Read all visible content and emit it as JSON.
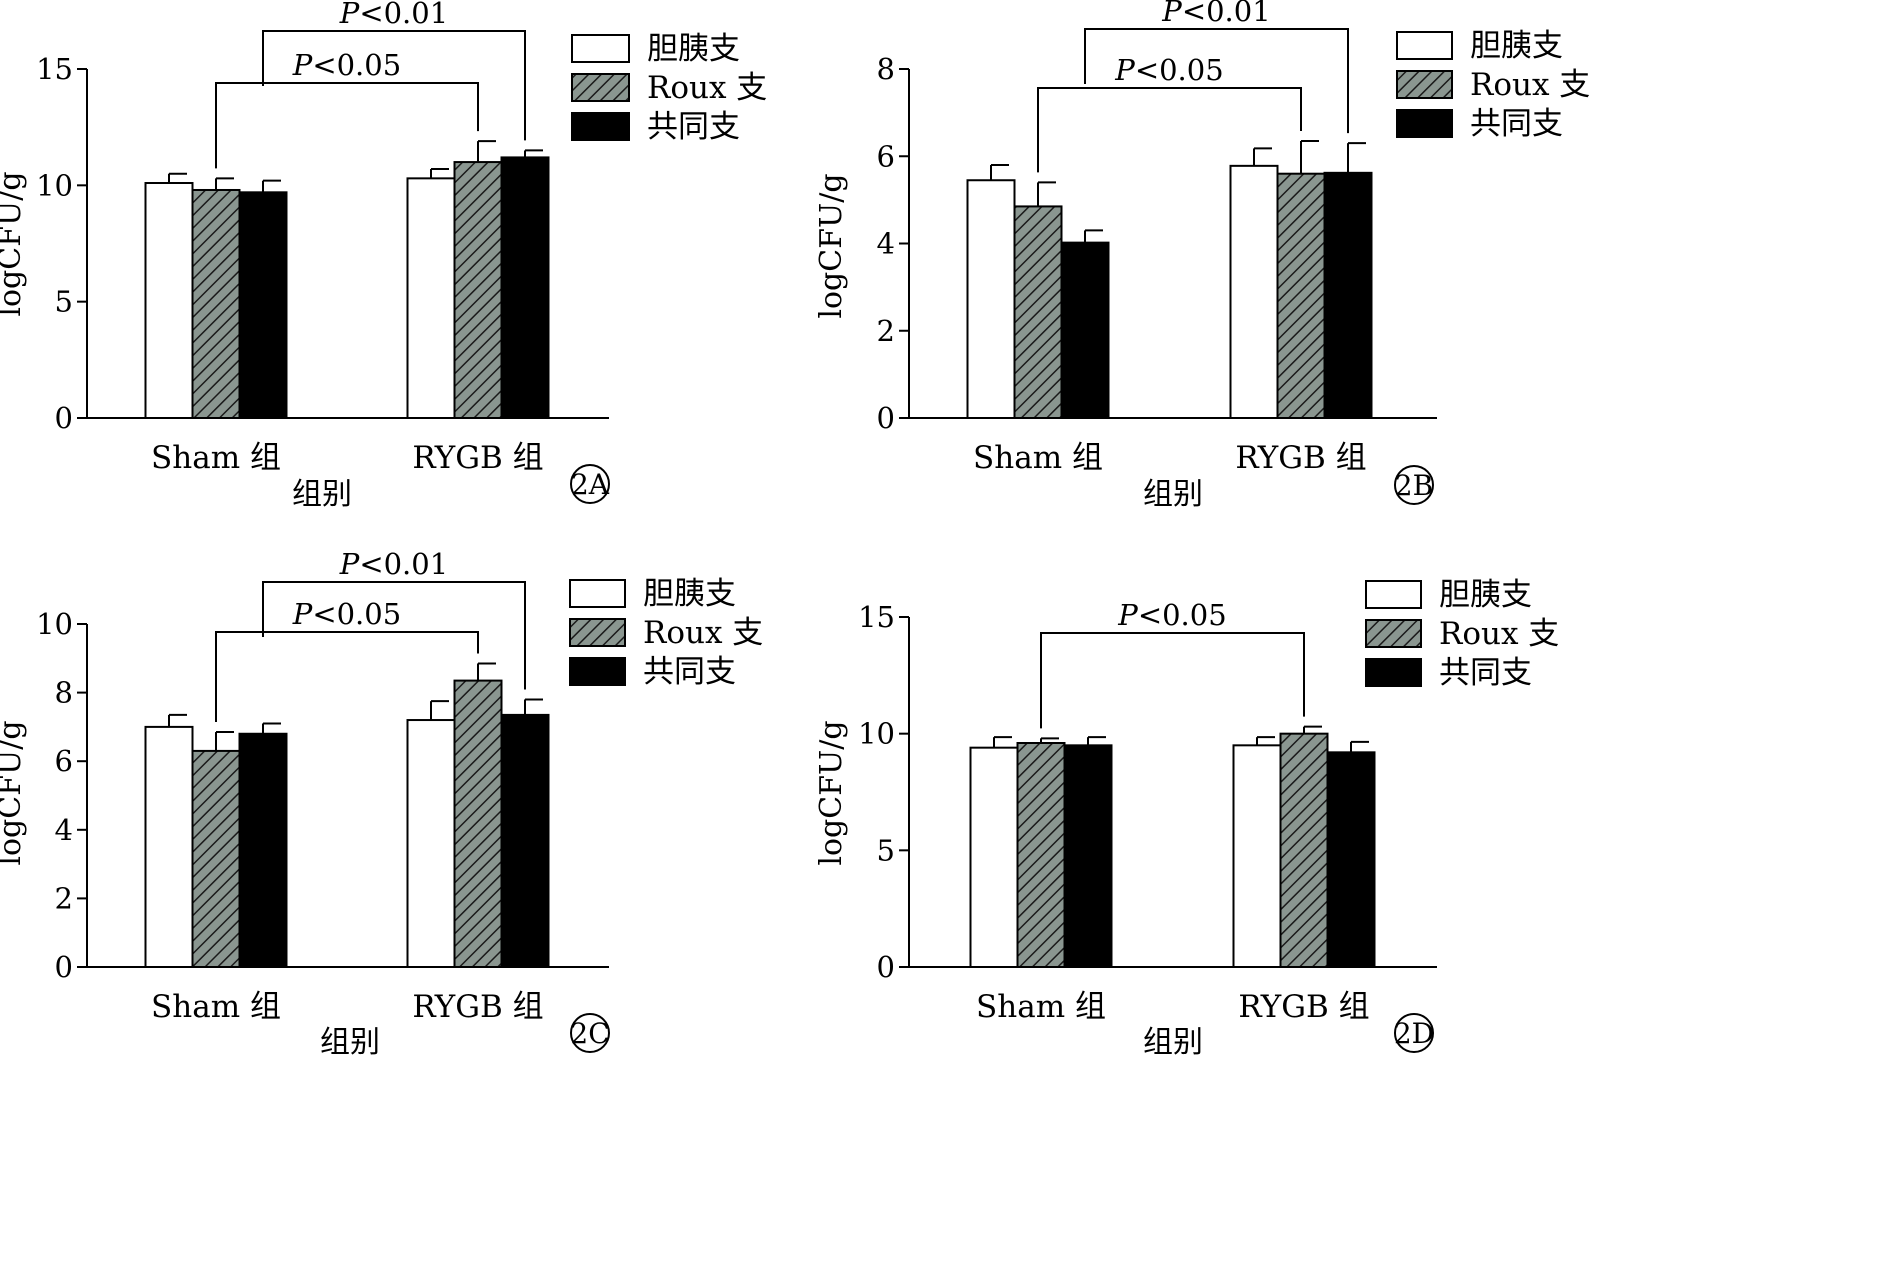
{
  "figure": {
    "legend": [
      "胆胰支",
      "Roux 支",
      "共同支"
    ],
    "series_fills": [
      "#ffffff",
      "hatch",
      "#000000"
    ],
    "colors": {
      "hatch_base": "#8a9690",
      "hatch_line": "#1a1a1a",
      "bar_edge": "#000000"
    }
  },
  "chart_data": [
    {
      "type": "bar",
      "panel_label": "2A",
      "categories": [
        "Sham 组",
        "RYGB 组"
      ],
      "xlabel": "组别",
      "ylabel": "logCFU/g",
      "ylim": [
        0,
        15
      ],
      "yticks": [
        0,
        5,
        10,
        15
      ],
      "legend_position": "top-right",
      "grid": false,
      "series": [
        {
          "name": "胆胰支",
          "values": [
            10.1,
            10.3
          ],
          "errors": [
            0.4,
            0.4
          ]
        },
        {
          "name": "Roux 支",
          "values": [
            9.8,
            11.0
          ],
          "errors": [
            0.5,
            0.9
          ]
        },
        {
          "name": "共同支",
          "values": [
            9.7,
            11.2
          ],
          "errors": [
            0.5,
            0.3
          ]
        }
      ],
      "significance": [
        {
          "label": "P<0.05",
          "from": [
            0,
            1
          ],
          "to": [
            1,
            1
          ]
        },
        {
          "label": "P<0.01",
          "from": [
            0,
            2
          ],
          "to": [
            1,
            2
          ]
        }
      ]
    },
    {
      "type": "bar",
      "panel_label": "2B",
      "categories": [
        "Sham 组",
        "RYGB 组"
      ],
      "xlabel": "组别",
      "ylabel": "logCFU/g",
      "ylim": [
        0,
        8
      ],
      "yticks": [
        0,
        2,
        4,
        6,
        8
      ],
      "legend_position": "top-right",
      "grid": false,
      "series": [
        {
          "name": "胆胰支",
          "values": [
            5.45,
            5.78
          ],
          "errors": [
            0.35,
            0.4
          ]
        },
        {
          "name": "Roux 支",
          "values": [
            4.85,
            5.6
          ],
          "errors": [
            0.55,
            0.75
          ]
        },
        {
          "name": "共同支",
          "values": [
            4.02,
            5.62
          ],
          "errors": [
            0.28,
            0.68
          ]
        }
      ],
      "significance": [
        {
          "label": "P<0.05",
          "from": [
            0,
            1
          ],
          "to": [
            1,
            1
          ]
        },
        {
          "label": "P<0.01",
          "from": [
            0,
            2
          ],
          "to": [
            1,
            2
          ]
        }
      ]
    },
    {
      "type": "bar",
      "panel_label": "2C",
      "categories": [
        "Sham 组",
        "RYGB 组"
      ],
      "xlabel": "组别",
      "ylabel": "logCFU/g",
      "ylim": [
        0,
        10
      ],
      "yticks": [
        0,
        2,
        4,
        6,
        8,
        10
      ],
      "legend_position": "top-right",
      "grid": false,
      "series": [
        {
          "name": "胆胰支",
          "values": [
            7.0,
            7.2
          ],
          "errors": [
            0.35,
            0.55
          ]
        },
        {
          "name": "Roux 支",
          "values": [
            6.3,
            8.35
          ],
          "errors": [
            0.55,
            0.5
          ]
        },
        {
          "name": "共同支",
          "values": [
            6.8,
            7.35
          ],
          "errors": [
            0.3,
            0.45
          ]
        }
      ],
      "significance": [
        {
          "label": "P<0.05",
          "from": [
            0,
            1
          ],
          "to": [
            1,
            1
          ]
        },
        {
          "label": "P<0.01",
          "from": [
            0,
            2
          ],
          "to": [
            1,
            2
          ]
        }
      ]
    },
    {
      "type": "bar",
      "panel_label": "2D",
      "categories": [
        "Sham 组",
        "RYGB 组"
      ],
      "xlabel": "组别",
      "ylabel": "logCFU/g",
      "ylim": [
        0,
        15
      ],
      "yticks": [
        0,
        5,
        10,
        15
      ],
      "legend_position": "top-right",
      "grid": false,
      "series": [
        {
          "name": "胆胰支",
          "values": [
            9.4,
            9.5
          ],
          "errors": [
            0.45,
            0.35
          ]
        },
        {
          "name": "Roux 支",
          "values": [
            9.6,
            10.0
          ],
          "errors": [
            0.2,
            0.3
          ]
        },
        {
          "name": "共同支",
          "values": [
            9.5,
            9.2
          ],
          "errors": [
            0.35,
            0.45
          ]
        }
      ],
      "significance": [
        {
          "label": "P<0.05",
          "from": [
            0,
            1
          ],
          "to": [
            1,
            1
          ]
        }
      ]
    }
  ]
}
